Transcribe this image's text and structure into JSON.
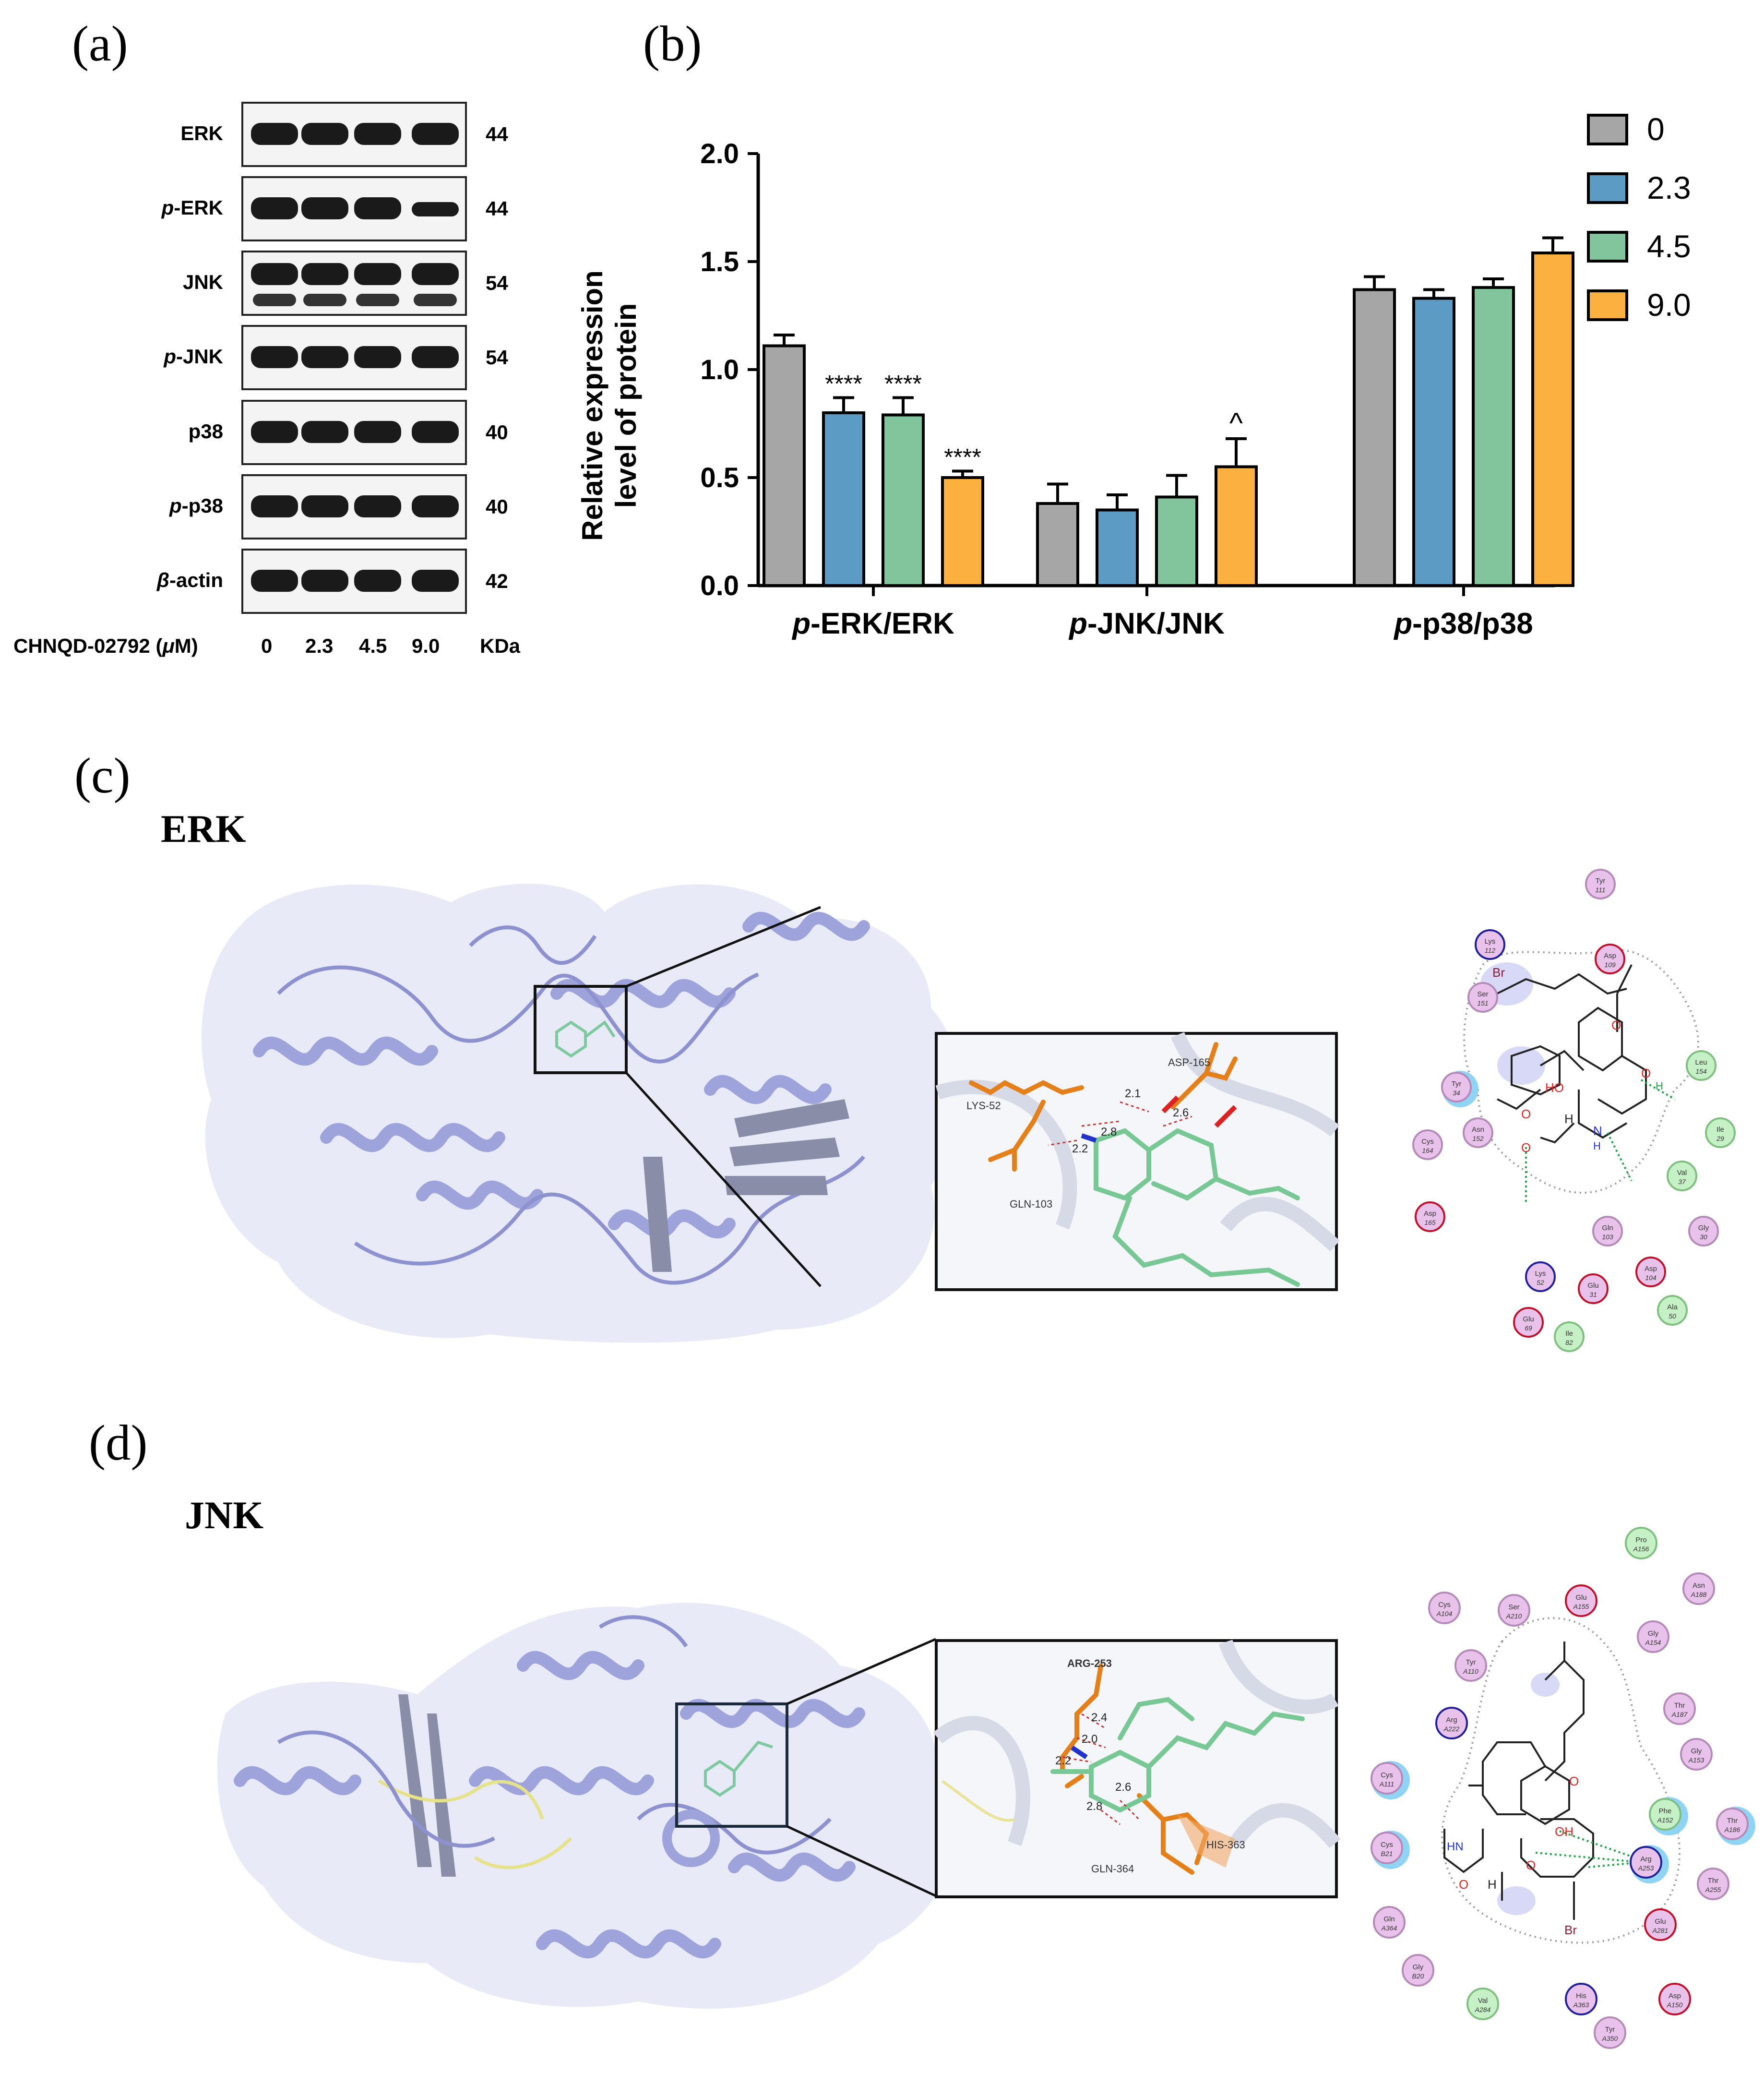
{
  "panel_labels": {
    "a": "(a)",
    "b": "(b)",
    "c": "(c)",
    "d": "(d)"
  },
  "headings": {
    "erk": "ERK",
    "jnk": "JNK"
  },
  "western_blot": {
    "rows": [
      {
        "prefix": "",
        "name": "ERK",
        "kda": "44"
      },
      {
        "prefix": "p",
        "name": "-ERK",
        "kda": "44"
      },
      {
        "prefix": "",
        "name": "JNK",
        "kda": "54"
      },
      {
        "prefix": "p",
        "name": "-JNK",
        "kda": "54"
      },
      {
        "prefix": "",
        "name": "p38",
        "kda": "40"
      },
      {
        "prefix": "p",
        "name": "-p38",
        "kda": "40"
      },
      {
        "prefix": "β",
        "name": "-actin",
        "kda": "42"
      }
    ],
    "compound_label": "CHNQD-02792 (",
    "compound_unit": "μ",
    "compound_unit_rest": "M)",
    "doses": [
      "0",
      "2.3",
      "4.5",
      "9.0"
    ],
    "kda_label": "KDa"
  },
  "chart_data": {
    "type": "bar",
    "ylabel": "Relative expression level of protein",
    "ylabel_line1": "Relative expression",
    "ylabel_line2": "level of protein",
    "ylim": [
      0,
      2.0
    ],
    "yticks": [
      "0.0",
      "0.5",
      "1.0",
      "1.5",
      "2.0"
    ],
    "categories": [
      {
        "prefix": "p",
        "rest": "-ERK/ERK"
      },
      {
        "prefix": "p",
        "rest": "-JNK/JNK"
      },
      {
        "prefix": "p",
        "rest": "-p38/p38"
      }
    ],
    "series": [
      {
        "name": "0",
        "color": "#a6a6a6",
        "values": [
          1.11,
          0.38,
          1.37
        ],
        "errors": [
          0.05,
          0.09,
          0.06
        ],
        "annotations": [
          "",
          "",
          ""
        ]
      },
      {
        "name": "2.3",
        "color": "#5b9bc4",
        "values": [
          0.8,
          0.35,
          1.33
        ],
        "errors": [
          0.07,
          0.07,
          0.04
        ],
        "annotations": [
          "****",
          "",
          ""
        ]
      },
      {
        "name": "4.5",
        "color": "#82c49c",
        "values": [
          0.79,
          0.41,
          1.38
        ],
        "errors": [
          0.08,
          0.1,
          0.04
        ],
        "annotations": [
          "****",
          "",
          ""
        ]
      },
      {
        "name": "9.0",
        "color": "#fbb040",
        "values": [
          0.5,
          0.55,
          1.54
        ],
        "errors": [
          0.03,
          0.13,
          0.07
        ],
        "annotations": [
          "****",
          "^",
          ""
        ]
      }
    ]
  },
  "erk_zoom": {
    "residues": [
      "LYS-52",
      "ASP-165",
      "GLN-103"
    ],
    "distances": [
      "2.1",
      "2.8",
      "2.6",
      "2.2"
    ]
  },
  "jnk_zoom": {
    "residues": [
      "ARG-253",
      "HIS-363",
      "GLN-364"
    ],
    "distances": [
      "2.4",
      "2.0",
      "2.2",
      "2.6",
      "2.8"
    ]
  },
  "erk_2d": {
    "residues": [
      {
        "n": "Tyr",
        "i": "111",
        "t": "pk"
      },
      {
        "n": "Lys",
        "i": "112",
        "t": "bl"
      },
      {
        "n": "Asp",
        "i": "109",
        "t": "rd"
      },
      {
        "n": "Ser",
        "i": "151",
        "t": "pk"
      },
      {
        "n": "Tyr",
        "i": "34",
        "t": "pk"
      },
      {
        "n": "Leu",
        "i": "154",
        "t": "gr"
      },
      {
        "n": "Cys",
        "i": "164",
        "t": "pk"
      },
      {
        "n": "Asn",
        "i": "152",
        "t": "pk"
      },
      {
        "n": "Ile",
        "i": "29",
        "t": "gr"
      },
      {
        "n": "Val",
        "i": "37",
        "t": "gr"
      },
      {
        "n": "Asp",
        "i": "165",
        "t": "rd"
      },
      {
        "n": "Gln",
        "i": "103",
        "t": "pk"
      },
      {
        "n": "Gly",
        "i": "30",
        "t": "pk"
      },
      {
        "n": "Lys",
        "i": "52",
        "t": "bl"
      },
      {
        "n": "Glu",
        "i": "31",
        "t": "rd"
      },
      {
        "n": "Asp",
        "i": "104",
        "t": "rd"
      },
      {
        "n": "Ala",
        "i": "50",
        "t": "gr"
      },
      {
        "n": "Glu",
        "i": "69",
        "t": "rd"
      },
      {
        "n": "Ile",
        "i": "82",
        "t": "gr"
      }
    ],
    "atoms": {
      "br": "Br",
      "o_ring": "O",
      "ho": "HO",
      "o_me": "O",
      "h": "H",
      "o_co": "O",
      "nh": "N",
      "nh_h": "H",
      "oh": "O",
      "oh_h": "H"
    }
  },
  "jnk_2d": {
    "residues": [
      {
        "n": "Pro",
        "i": "A156",
        "t": "gr"
      },
      {
        "n": "Asn",
        "i": "A188",
        "t": "pk"
      },
      {
        "n": "Cys",
        "i": "A104",
        "t": "pk"
      },
      {
        "n": "Ser",
        "i": "A210",
        "t": "pk"
      },
      {
        "n": "Glu",
        "i": "A155",
        "t": "rd"
      },
      {
        "n": "Gly",
        "i": "A154",
        "t": "pk"
      },
      {
        "n": "Tyr",
        "i": "A110",
        "t": "pk"
      },
      {
        "n": "Arg",
        "i": "A222",
        "t": "bl"
      },
      {
        "n": "Thr",
        "i": "A187",
        "t": "pk"
      },
      {
        "n": "Cys",
        "i": "A111",
        "t": "pk"
      },
      {
        "n": "Gly",
        "i": "A153",
        "t": "pk"
      },
      {
        "n": "Phe",
        "i": "A152",
        "t": "gr"
      },
      {
        "n": "Thr",
        "i": "A186",
        "t": "pk"
      },
      {
        "n": "Cys",
        "i": "B21",
        "t": "pk"
      },
      {
        "n": "Arg",
        "i": "A253",
        "t": "bl"
      },
      {
        "n": "Thr",
        "i": "A255",
        "t": "pk"
      },
      {
        "n": "Gln",
        "i": "A364",
        "t": "pk"
      },
      {
        "n": "Glu",
        "i": "A281",
        "t": "rd"
      },
      {
        "n": "Gly",
        "i": "B20",
        "t": "pk"
      },
      {
        "n": "Val",
        "i": "A284",
        "t": "gr"
      },
      {
        "n": "His",
        "i": "A363",
        "t": "bl"
      },
      {
        "n": "Tyr",
        "i": "A350",
        "t": "pk"
      },
      {
        "n": "Asp",
        "i": "A150",
        "t": "rd"
      }
    ],
    "atoms": {
      "hn": "HN",
      "o_co": "O",
      "h": "H",
      "o_ring": "O",
      "oh": "OH",
      "o_me": "O",
      "br": "Br"
    }
  }
}
